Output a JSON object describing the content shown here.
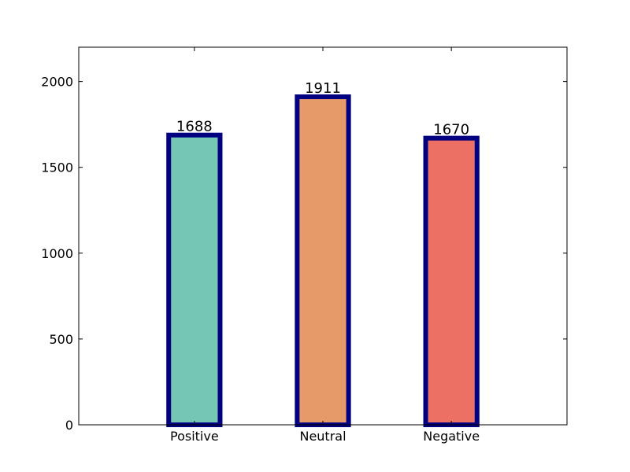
{
  "chart_data": {
    "type": "bar",
    "categories": [
      "Positive",
      "Neutral",
      "Negative"
    ],
    "values": [
      1688,
      1911,
      1670
    ],
    "data_labels": [
      "1688",
      "1911",
      "1670"
    ],
    "bar_colors": [
      "#76c6b5",
      "#e69a69",
      "#ec7063"
    ],
    "bar_edge_color": "#000080",
    "ylim": [
      0,
      2200
    ],
    "yticks": [
      0,
      500,
      1000,
      1500,
      2000
    ],
    "ytick_labels": [
      "0",
      "500",
      "1000",
      "1500",
      "2000"
    ],
    "title": "",
    "xlabel": "",
    "ylabel": "",
    "grid": false
  }
}
